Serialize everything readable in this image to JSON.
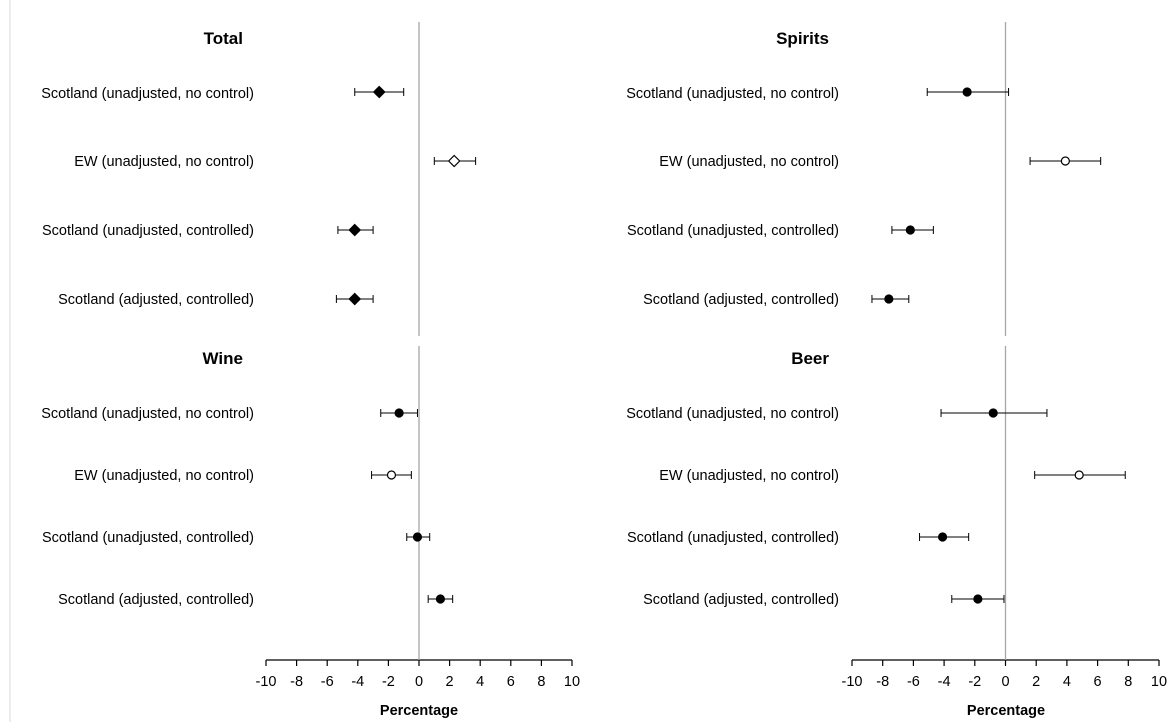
{
  "colors": {
    "marker": "#000000",
    "hollow_fill": "#ffffff",
    "zero_line": "#a6a6a6",
    "axis": "#000000",
    "whisker": "#000000"
  },
  "x_axis": {
    "label": "Percentage",
    "ticks": [
      "-10",
      "-8",
      "-6",
      "-4",
      "-2",
      "0",
      "2",
      "4",
      "6",
      "8",
      "10"
    ]
  },
  "chart_data": [
    {
      "type": "forest",
      "title": "Total",
      "marker": "diamond",
      "xlim": [
        -10,
        10
      ],
      "xlabel": "Percentage",
      "rows": [
        {
          "label": "Scotland (unadjusted, no control)",
          "value": -2.6,
          "ci": [
            -4.2,
            -1.0
          ],
          "filled": true
        },
        {
          "label": "EW (unadjusted, no control)",
          "value": 2.3,
          "ci": [
            1.0,
            3.7
          ],
          "filled": false
        },
        {
          "label": "Scotland (unadjusted, controlled)",
          "value": -4.2,
          "ci": [
            -5.3,
            -3.0
          ],
          "filled": true
        },
        {
          "label": "Scotland (adjusted, controlled)",
          "value": -4.2,
          "ci": [
            -5.4,
            -3.0
          ],
          "filled": true
        }
      ]
    },
    {
      "type": "forest",
      "title": "Spirits",
      "marker": "circle",
      "xlim": [
        -10,
        10
      ],
      "xlabel": "Percentage",
      "rows": [
        {
          "label": "Scotland (unadjusted, no control)",
          "value": -2.5,
          "ci": [
            -5.1,
            0.2
          ],
          "filled": true
        },
        {
          "label": "EW (unadjusted, no control)",
          "value": 3.9,
          "ci": [
            1.6,
            6.2
          ],
          "filled": false
        },
        {
          "label": "Scotland (unadjusted, controlled)",
          "value": -6.2,
          "ci": [
            -7.4,
            -4.7
          ],
          "filled": true
        },
        {
          "label": "Scotland (adjusted, controlled)",
          "value": -7.6,
          "ci": [
            -8.7,
            -6.3
          ],
          "filled": true
        }
      ]
    },
    {
      "type": "forest",
      "title": "Wine",
      "marker": "circle",
      "xlim": [
        -10,
        10
      ],
      "xlabel": "Percentage",
      "rows": [
        {
          "label": "Scotland (unadjusted, no control)",
          "value": -1.3,
          "ci": [
            -2.5,
            -0.1
          ],
          "filled": true
        },
        {
          "label": "EW (unadjusted, no control)",
          "value": -1.8,
          "ci": [
            -3.1,
            -0.5
          ],
          "filled": false
        },
        {
          "label": "Scotland (unadjusted, controlled)",
          "value": -0.1,
          "ci": [
            -0.8,
            0.7
          ],
          "filled": true
        },
        {
          "label": "Scotland (adjusted, controlled)",
          "value": 1.4,
          "ci": [
            0.6,
            2.2
          ],
          "filled": true
        }
      ]
    },
    {
      "type": "forest",
      "title": "Beer",
      "marker": "circle",
      "xlim": [
        -10,
        10
      ],
      "xlabel": "Percentage",
      "rows": [
        {
          "label": "Scotland (unadjusted, no control)",
          "value": -0.8,
          "ci": [
            -4.2,
            2.7
          ],
          "filled": true
        },
        {
          "label": "EW (unadjusted, no control)",
          "value": 4.8,
          "ci": [
            1.9,
            7.8
          ],
          "filled": false
        },
        {
          "label": "Scotland (unadjusted, controlled)",
          "value": -4.1,
          "ci": [
            -5.6,
            -2.4
          ],
          "filled": true
        },
        {
          "label": "Scotland (adjusted, controlled)",
          "value": -1.8,
          "ci": [
            -3.5,
            -0.1
          ],
          "filled": true
        }
      ]
    }
  ]
}
